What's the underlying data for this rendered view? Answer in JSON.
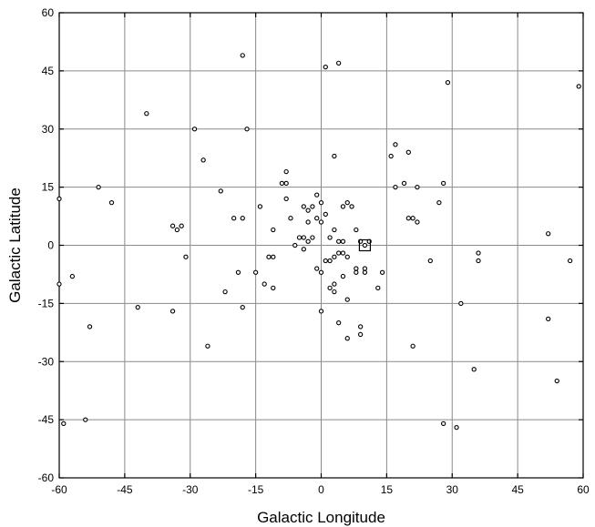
{
  "chart_data": {
    "type": "scatter",
    "xlabel": "Galactic Longitude",
    "ylabel": "Galactic Latitude",
    "xlim": [
      -60,
      60
    ],
    "ylim": [
      -60,
      60
    ],
    "xticks": [
      -60,
      -45,
      -30,
      -15,
      0,
      15,
      30,
      45,
      60
    ],
    "yticks": [
      -60,
      -45,
      -30,
      -15,
      0,
      15,
      30,
      45,
      60
    ],
    "xtick_labels": [
      "-60",
      "-45",
      "-30",
      "-15",
      "0",
      "15",
      "30",
      "45",
      "60"
    ],
    "ytick_labels": [
      "-60",
      "-45",
      "-30",
      "-15",
      "0",
      "15",
      "30",
      "45",
      "60"
    ],
    "grid": true,
    "points": [
      [
        -18,
        49
      ],
      [
        1,
        46
      ],
      [
        4,
        47
      ],
      [
        29,
        42
      ],
      [
        59,
        41
      ],
      [
        -40,
        34
      ],
      [
        -29,
        30
      ],
      [
        -17,
        30
      ],
      [
        3,
        23
      ],
      [
        -27,
        22
      ],
      [
        -8,
        19
      ],
      [
        17,
        26
      ],
      [
        20,
        24
      ],
      [
        16,
        23
      ],
      [
        19,
        16
      ],
      [
        -60,
        12
      ],
      [
        -51,
        15
      ],
      [
        -48,
        11
      ],
      [
        -23,
        14
      ],
      [
        -8,
        16
      ],
      [
        -9,
        16
      ],
      [
        -8,
        12
      ],
      [
        -1,
        13
      ],
      [
        0,
        11
      ],
      [
        -2,
        10
      ],
      [
        -4,
        10
      ],
      [
        -3,
        9
      ],
      [
        -1,
        7
      ],
      [
        -7,
        7
      ],
      [
        -3,
        6
      ],
      [
        0,
        6
      ],
      [
        1,
        8
      ],
      [
        5,
        10
      ],
      [
        6,
        11
      ],
      [
        7,
        10
      ],
      [
        17,
        15
      ],
      [
        22,
        15
      ],
      [
        27,
        11
      ],
      [
        28,
        16
      ],
      [
        -34,
        5
      ],
      [
        -33,
        4
      ],
      [
        -32,
        5
      ],
      [
        -18,
        7
      ],
      [
        -14,
        10
      ],
      [
        -11,
        4
      ],
      [
        -20,
        7
      ],
      [
        -5,
        2
      ],
      [
        -4,
        2
      ],
      [
        -3,
        1
      ],
      [
        -2,
        2
      ],
      [
        -6,
        0
      ],
      [
        -4,
        -1
      ],
      [
        2,
        2
      ],
      [
        3,
        4
      ],
      [
        4,
        1
      ],
      [
        5,
        1
      ],
      [
        8,
        4
      ],
      [
        9,
        1
      ],
      [
        10,
        0
      ],
      [
        11,
        1
      ],
      [
        20,
        7
      ],
      [
        22,
        6
      ],
      [
        21,
        7
      ],
      [
        52,
        3
      ],
      [
        -31,
        -3
      ],
      [
        -19,
        -7
      ],
      [
        -15,
        -7
      ],
      [
        -12,
        -3
      ],
      [
        -11,
        -3
      ],
      [
        -1,
        -6
      ],
      [
        0,
        -7
      ],
      [
        1,
        -4
      ],
      [
        2,
        -4
      ],
      [
        3,
        -3
      ],
      [
        4,
        -2
      ],
      [
        5,
        -2
      ],
      [
        6,
        -3
      ],
      [
        8,
        -6
      ],
      [
        8,
        -7
      ],
      [
        10,
        -6
      ],
      [
        10,
        -7
      ],
      [
        14,
        -7
      ],
      [
        25,
        -4
      ],
      [
        36,
        -2
      ],
      [
        36,
        -4
      ],
      [
        57,
        -4
      ],
      [
        -60,
        -10
      ],
      [
        -57,
        -8
      ],
      [
        -42,
        -16
      ],
      [
        -34,
        -17
      ],
      [
        -22,
        -12
      ],
      [
        -18,
        -16
      ],
      [
        -13,
        -10
      ],
      [
        -11,
        -11
      ],
      [
        0,
        -17
      ],
      [
        2,
        -11
      ],
      [
        3,
        -10
      ],
      [
        3,
        -12
      ],
      [
        5,
        -8
      ],
      [
        4,
        -20
      ],
      [
        6,
        -14
      ],
      [
        9,
        -21
      ],
      [
        9,
        -23
      ],
      [
        13,
        -11
      ],
      [
        32,
        -15
      ],
      [
        52,
        -19
      ],
      [
        -53,
        -21
      ],
      [
        -26,
        -26
      ],
      [
        6,
        -24
      ],
      [
        21,
        -26
      ],
      [
        35,
        -32
      ],
      [
        54,
        -35
      ],
      [
        -59,
        -46
      ],
      [
        -54,
        -45
      ],
      [
        28,
        -46
      ],
      [
        31,
        -47
      ]
    ],
    "marker_color": "#000000",
    "highlight_box": [
      10,
      0
    ]
  }
}
